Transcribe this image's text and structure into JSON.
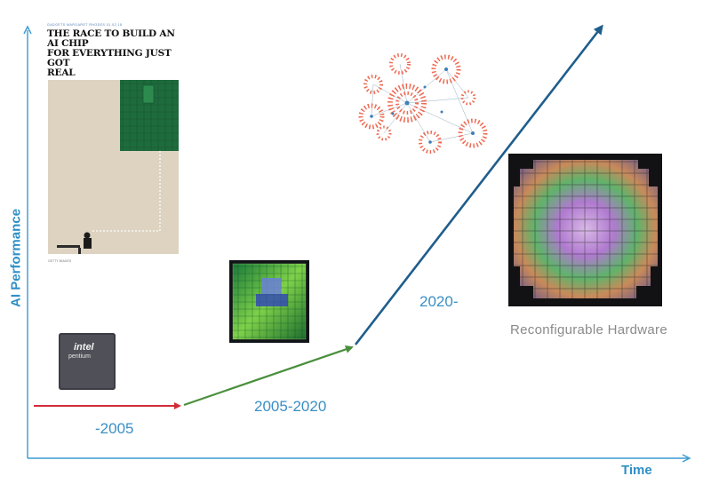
{
  "axes": {
    "y_label": "AI Performance",
    "x_label": "Time"
  },
  "eras": {
    "early": "-2005",
    "middle": "2005-2020",
    "recent": "2020-"
  },
  "caption": "Reconfigurable Hardware",
  "article": {
    "kicker": "GADGETS   MARGARET RHODES   01.02.18",
    "headline_lines": [
      "THE RACE TO BUILD AN AI CHIP",
      "FOR EVERYTHING JUST GOT",
      "REAL"
    ],
    "credit": "GETTY IMAGES"
  },
  "chip": {
    "brand": "intel",
    "model": "pentium"
  },
  "colors": {
    "axis": "#3a9ad0",
    "early_arrow": "#d22b36",
    "middle_arrow": "#4a8f3c",
    "recent_arrow": "#1f5e8c",
    "label": "#3a8fc4"
  }
}
